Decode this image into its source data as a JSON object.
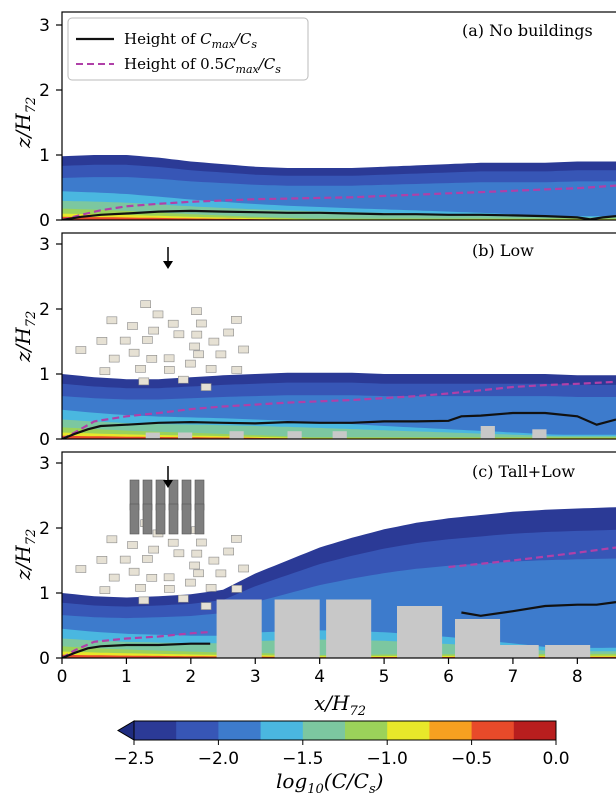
{
  "chart_data": {
    "type": "area",
    "xlabel": "x/H",
    "xlabel_sub": "72",
    "ylabel": "z/H",
    "ylabel_sub": "72",
    "xlim": [
      0,
      8.6
    ],
    "xticks": [
      "0",
      "1",
      "2",
      "3",
      "4",
      "5",
      "6",
      "7",
      "8"
    ],
    "ylim": [
      0,
      3.2
    ],
    "yticks": [
      "0",
      "1",
      "2",
      "3"
    ],
    "legend": {
      "placement": "upper-left",
      "entries": [
        {
          "name": "Height of C_max/C_s",
          "text": "Height of ",
          "math": "C",
          "sub": "max",
          "tail": "/C",
          "tail_sub": "s",
          "color": "#111111",
          "style": "solid"
        },
        {
          "name": "Height of 0.5C_max/C_s",
          "text": "Height of 0.5",
          "math": "C",
          "sub": "max",
          "tail": "/C",
          "tail_sub": "s",
          "color": "#b040a8",
          "style": "dashed"
        }
      ]
    },
    "colorbar": {
      "label": "log",
      "label_sub": "10",
      "label_tail": "(C/C",
      "label_tail_sub": "s",
      "label_end": ")",
      "ticks": [
        "−2.5",
        "−2.0",
        "−1.5",
        "−1.0",
        "−0.5",
        "0.0"
      ],
      "min": -2.5,
      "max": 0.0,
      "levels": 10,
      "extend": "min",
      "colors": [
        "#2b3a96",
        "#3756b6",
        "#3d7bcc",
        "#4ab7e0",
        "#7cc7a0",
        "#9bd25a",
        "#e8e82a",
        "#f6a020",
        "#e84a2a",
        "#b81e1e"
      ]
    },
    "panels": [
      {
        "title": "(a) No buildings",
        "cmax_height": {
          "x": [
            0,
            0.3,
            0.6,
            1.0,
            1.5,
            2.0,
            2.5,
            3.0,
            3.5,
            4.0,
            4.5,
            5.0,
            5.5,
            6.0,
            6.5,
            7.0,
            7.5,
            8.0,
            8.2,
            8.4,
            8.6
          ],
          "y": [
            0.0,
            0.05,
            0.08,
            0.1,
            0.13,
            0.14,
            0.13,
            0.12,
            0.11,
            0.11,
            0.1,
            0.09,
            0.09,
            0.08,
            0.08,
            0.07,
            0.06,
            0.04,
            0.01,
            0.04,
            0.06
          ]
        },
        "half_cmax_height": {
          "x": [
            0,
            0.3,
            0.6,
            1.0,
            1.5,
            2.0,
            2.5,
            3.0,
            3.5,
            4.0,
            4.5,
            5.0,
            5.5,
            6.0,
            6.5,
            7.0,
            7.5,
            8.0,
            8.6
          ],
          "y": [
            0.0,
            0.08,
            0.15,
            0.21,
            0.25,
            0.28,
            0.3,
            0.32,
            0.33,
            0.34,
            0.35,
            0.37,
            0.39,
            0.41,
            0.43,
            0.45,
            0.47,
            0.49,
            0.53
          ]
        },
        "plume_top": {
          "x": [
            0,
            0.5,
            1.0,
            1.5,
            2.0,
            2.5,
            3.0,
            3.5,
            4.0,
            4.5,
            5.0,
            5.5,
            6.0,
            6.5,
            7.0,
            7.5,
            8.0,
            8.6
          ],
          "y": [
            0.98,
            1.0,
            1.0,
            0.96,
            0.9,
            0.86,
            0.82,
            0.8,
            0.8,
            0.8,
            0.82,
            0.84,
            0.86,
            0.88,
            0.88,
            0.88,
            0.9,
            0.9
          ]
        },
        "buildings": [],
        "inset": "none"
      },
      {
        "title": "(b) Low",
        "cmax_height": {
          "x": [
            0,
            0.2,
            0.4,
            0.6,
            1.0,
            1.5,
            2.0,
            2.5,
            3.0,
            3.5,
            4.0,
            4.5,
            5.0,
            5.5,
            6.0,
            6.2,
            6.5,
            7.0,
            7.5,
            8.0,
            8.3,
            8.6
          ],
          "y": [
            0.0,
            0.08,
            0.15,
            0.2,
            0.22,
            0.25,
            0.26,
            0.25,
            0.24,
            0.26,
            0.25,
            0.25,
            0.27,
            0.27,
            0.28,
            0.35,
            0.36,
            0.4,
            0.4,
            0.35,
            0.22,
            0.3
          ]
        },
        "half_cmax_height": {
          "x": [
            0,
            0.2,
            0.5,
            1.0,
            1.5,
            2.0,
            2.5,
            3.0,
            3.5,
            4.0,
            4.5,
            5.0,
            5.5,
            6.0,
            6.5,
            7.0,
            7.5,
            8.0,
            8.6
          ],
          "y": [
            0.0,
            0.1,
            0.27,
            0.35,
            0.4,
            0.46,
            0.5,
            0.53,
            0.56,
            0.58,
            0.6,
            0.63,
            0.66,
            0.7,
            0.75,
            0.8,
            0.83,
            0.85,
            0.88
          ]
        },
        "plume_top": {
          "x": [
            0,
            0.5,
            1.0,
            1.5,
            2.0,
            2.5,
            3.0,
            3.5,
            4.0,
            4.5,
            5.0,
            5.5,
            6.0,
            6.5,
            7.0,
            7.5,
            8.0,
            8.6
          ],
          "y": [
            1.0,
            0.95,
            0.92,
            0.92,
            0.95,
            0.98,
            1.0,
            1.02,
            1.02,
            1.02,
            1.0,
            1.0,
            1.0,
            1.0,
            1.0,
            1.0,
            0.98,
            0.98
          ]
        },
        "buildings": [
          [
            1.3,
            0.1
          ],
          [
            1.8,
            0.1
          ],
          [
            2.6,
            0.12
          ],
          [
            3.5,
            0.12
          ],
          [
            4.2,
            0.12
          ],
          [
            6.5,
            0.2
          ],
          [
            7.3,
            0.15
          ]
        ],
        "inset": "low-city"
      },
      {
        "title": "(c) Tall+Low",
        "cmax_height": {
          "x": [
            0,
            0.2,
            0.4,
            0.6,
            1.0,
            1.5,
            2.0,
            2.3
          ],
          "y": [
            0.0,
            0.08,
            0.15,
            0.18,
            0.2,
            0.2,
            0.22,
            0.22
          ]
        },
        "cmax_height_b": {
          "x": [
            6.2,
            6.5,
            7.0,
            7.5,
            8.0,
            8.3,
            8.6
          ],
          "y": [
            0.7,
            0.65,
            0.72,
            0.8,
            0.82,
            0.82,
            0.86
          ]
        },
        "half_cmax_height": {
          "x": [
            0,
            0.2,
            0.5,
            1.0,
            1.5,
            2.0,
            2.3
          ],
          "y": [
            0.0,
            0.12,
            0.25,
            0.3,
            0.33,
            0.38,
            0.4
          ]
        },
        "half_cmax_height_b": {
          "x": [
            6.0,
            6.5,
            7.0,
            7.5,
            8.0,
            8.6
          ],
          "y": [
            1.4,
            1.45,
            1.5,
            1.56,
            1.62,
            1.7
          ]
        },
        "plume_top": {
          "x": [
            0,
            0.5,
            1.0,
            1.5,
            2.0,
            2.5,
            3.0,
            3.5,
            4.0,
            4.5,
            5.0,
            5.5,
            6.0,
            6.5,
            7.0,
            7.5,
            8.0,
            8.6
          ],
          "y": [
            1.0,
            0.95,
            0.93,
            0.95,
            0.98,
            1.05,
            1.3,
            1.5,
            1.7,
            1.85,
            1.98,
            2.08,
            2.15,
            2.2,
            2.25,
            2.28,
            2.3,
            2.32
          ]
        },
        "buildings": [
          [
            2.4,
            0.9
          ],
          [
            3.3,
            0.9
          ],
          [
            4.1,
            0.9
          ],
          [
            5.2,
            0.8
          ],
          [
            6.1,
            0.6
          ],
          [
            6.7,
            0.2
          ],
          [
            7.5,
            0.2
          ]
        ],
        "inset": "tall-city"
      }
    ]
  }
}
